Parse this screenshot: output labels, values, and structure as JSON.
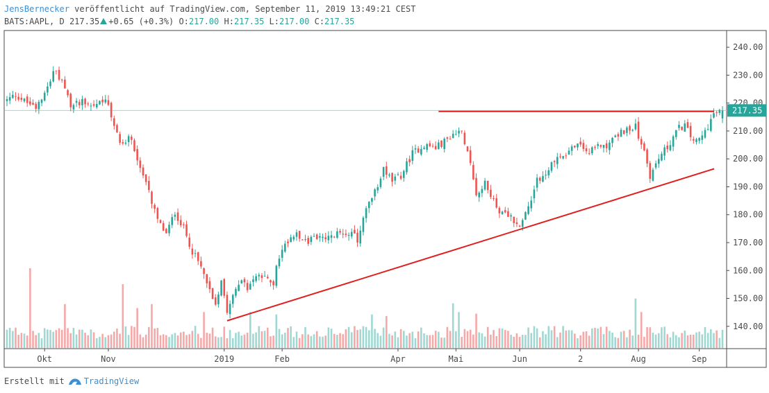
{
  "header": {
    "author": "JensBernecker",
    "published_text": "veröffentlicht auf TradingView.com, September 11, 2019 13:49:21 CEST",
    "symbol": "BATS:AAPL, D",
    "last": "217.35",
    "change": "+0.65 (+0.3%)",
    "open_label": "O:",
    "open": "217.00",
    "high_label": "H:",
    "high": "217.35",
    "low_label": "L:",
    "low": "217.00",
    "close_label": "C:",
    "close": "217.35"
  },
  "footer": {
    "created_with": "Erstellt mit",
    "brand": "TradingView"
  },
  "colors": {
    "up": "#26a69a",
    "down": "#ef5350",
    "up_volume": "#9fd8d2",
    "down_volume": "#f5a8a8",
    "trendline": "#e02020",
    "price_line": "#9fd8d2",
    "price_label_bg": "#26a69a",
    "grid": "#ffffff",
    "axis_text": "#4a4a4a"
  },
  "chart_data": {
    "type": "candlestick",
    "symbol": "AAPL",
    "timeframe": "D",
    "ylim": [
      132,
      246
    ],
    "yticks": [
      140,
      150,
      160,
      170,
      180,
      190,
      200,
      210,
      220,
      230,
      240
    ],
    "ytick_labels": [
      "140.00",
      "150.00",
      "160.00",
      "170.00",
      "180.00",
      "190.00",
      "200.00",
      "210.00",
      "220.00",
      "230.00",
      "240.00"
    ],
    "last_price": 217.35,
    "last_price_label": "217.35",
    "x_range": [
      0,
      247
    ],
    "xticks": [
      {
        "label": "Okt",
        "index": 13
      },
      {
        "label": "Nov",
        "index": 35
      },
      {
        "label": "2019",
        "index": 75
      },
      {
        "label": "Feb",
        "index": 95
      },
      {
        "label": "Apr",
        "index": 135
      },
      {
        "label": "Mai",
        "index": 155
      },
      {
        "label": "Jun",
        "index": 177
      },
      {
        "label": "2",
        "index": 198
      },
      {
        "label": "Aug",
        "index": 218
      },
      {
        "label": "Sep",
        "index": 239
      }
    ],
    "keypoints": [
      [
        0,
        221
      ],
      [
        3,
        223
      ],
      [
        7,
        220
      ],
      [
        10,
        219
      ],
      [
        14,
        226
      ],
      [
        16,
        232
      ],
      [
        19,
        227
      ],
      [
        22,
        219
      ],
      [
        26,
        221
      ],
      [
        30,
        219
      ],
      [
        34,
        222
      ],
      [
        37,
        211
      ],
      [
        40,
        205
      ],
      [
        43,
        208
      ],
      [
        46,
        196
      ],
      [
        49,
        188
      ],
      [
        52,
        178
      ],
      [
        55,
        173
      ],
      [
        58,
        181
      ],
      [
        61,
        175
      ],
      [
        64,
        167
      ],
      [
        67,
        161
      ],
      [
        70,
        153
      ],
      [
        72,
        148
      ],
      [
        74,
        157
      ],
      [
        76,
        146
      ],
      [
        78,
        152
      ],
      [
        80,
        156
      ],
      [
        83,
        154
      ],
      [
        86,
        158
      ],
      [
        89,
        157
      ],
      [
        92,
        156
      ],
      [
        94,
        165
      ],
      [
        97,
        171
      ],
      [
        100,
        174
      ],
      [
        103,
        170
      ],
      [
        106,
        172
      ],
      [
        110,
        171
      ],
      [
        114,
        173
      ],
      [
        118,
        174
      ],
      [
        121,
        171
      ],
      [
        124,
        182
      ],
      [
        127,
        188
      ],
      [
        130,
        197
      ],
      [
        133,
        192
      ],
      [
        136,
        194
      ],
      [
        140,
        202
      ],
      [
        144,
        205
      ],
      [
        148,
        204
      ],
      [
        152,
        207
      ],
      [
        155,
        210
      ],
      [
        157,
        209
      ],
      [
        159,
        204
      ],
      [
        162,
        188
      ],
      [
        165,
        191
      ],
      [
        168,
        185
      ],
      [
        171,
        180
      ],
      [
        174,
        179
      ],
      [
        176,
        176
      ],
      [
        178,
        178
      ],
      [
        180,
        183
      ],
      [
        183,
        193
      ],
      [
        186,
        194
      ],
      [
        189,
        200
      ],
      [
        192,
        201
      ],
      [
        195,
        204
      ],
      [
        198,
        205
      ],
      [
        201,
        202
      ],
      [
        204,
        205
      ],
      [
        207,
        205
      ],
      [
        210,
        208
      ],
      [
        213,
        210
      ],
      [
        215,
        210
      ],
      [
        217,
        213
      ],
      [
        218,
        206
      ],
      [
        220,
        203
      ],
      [
        222,
        194
      ],
      [
        224,
        198
      ],
      [
        226,
        202
      ],
      [
        228,
        204
      ],
      [
        230,
        208
      ],
      [
        232,
        211
      ],
      [
        234,
        212
      ],
      [
        236,
        208
      ],
      [
        238,
        206
      ],
      [
        240,
        208
      ],
      [
        242,
        212
      ],
      [
        244,
        216
      ],
      [
        247,
        217.35
      ]
    ],
    "volume_spikes": [
      {
        "index": 8,
        "value": 1.0
      },
      {
        "index": 20,
        "value": 0.55
      },
      {
        "index": 40,
        "value": 0.8
      },
      {
        "index": 45,
        "value": 0.5
      },
      {
        "index": 50,
        "value": 0.55
      },
      {
        "index": 68,
        "value": 0.45
      },
      {
        "index": 84,
        "value": 0.45
      },
      {
        "index": 93,
        "value": 0.42
      },
      {
        "index": 126,
        "value": 0.42
      },
      {
        "index": 131,
        "value": 0.4
      },
      {
        "index": 154,
        "value": 0.56
      },
      {
        "index": 156,
        "value": 0.45
      },
      {
        "index": 162,
        "value": 0.43
      },
      {
        "index": 217,
        "value": 0.62
      },
      {
        "index": 219,
        "value": 0.45
      }
    ],
    "trendlines": [
      {
        "name": "resistance",
        "from": {
          "index": 149,
          "price": 217
        },
        "to": {
          "index": 247,
          "price": 217
        }
      },
      {
        "name": "support",
        "from": {
          "index": 76,
          "price": 142
        },
        "to": {
          "index": 252,
          "price": 199
        }
      }
    ]
  }
}
